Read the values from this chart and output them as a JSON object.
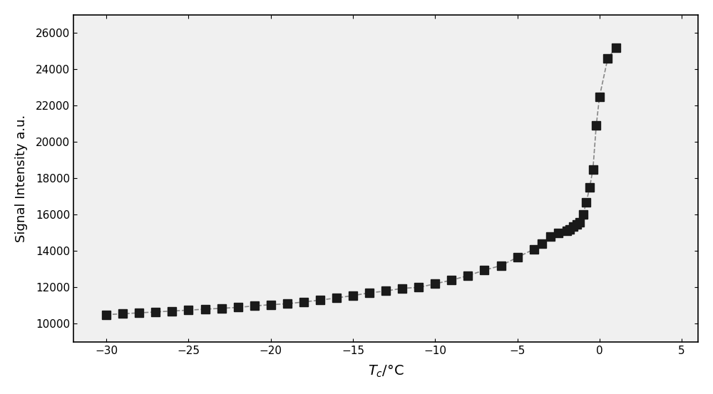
{
  "x": [
    -30,
    -29,
    -28,
    -27,
    -26,
    -25,
    -24,
    -23,
    -22,
    -21,
    -20,
    -19,
    -18,
    -17,
    -16,
    -15,
    -14,
    -13,
    -12,
    -11,
    -10,
    -9,
    -8,
    -7,
    -6,
    -5,
    -4,
    -3.5,
    -3,
    -2.5,
    -2,
    -1.8,
    -1.6,
    -1.4,
    -1.2,
    -1.0,
    -0.8,
    -0.6,
    -0.4,
    -0.2,
    0.0,
    0.5,
    1.0
  ],
  "y": [
    10500,
    10550,
    10600,
    10650,
    10700,
    10750,
    10800,
    10850,
    10900,
    10980,
    11050,
    11100,
    11200,
    11300,
    11420,
    11550,
    11700,
    11800,
    11950,
    12000,
    12200,
    12400,
    12650,
    12950,
    13200,
    13650,
    14100,
    14400,
    14800,
    15000,
    15100,
    15200,
    15350,
    15450,
    15600,
    16000,
    16700,
    17500,
    18500,
    20900,
    22500,
    24600,
    25200
  ],
  "xlabel": "$T_c$/°C",
  "ylabel": "Signal Intensity a.u.",
  "xlim": [
    -32,
    6
  ],
  "ylim": [
    9000,
    27000
  ],
  "xticks": [
    -30,
    -25,
    -20,
    -15,
    -10,
    -5,
    0,
    5
  ],
  "yticks": [
    10000,
    12000,
    14000,
    16000,
    18000,
    20000,
    22000,
    24000,
    26000
  ],
  "marker": "s",
  "marker_color": "#1a1a1a",
  "marker_size": 8,
  "line_color": "#888888",
  "line_style": "--",
  "line_width": 1.2,
  "background_color": "#f0f0f0",
  "figure_bg": "#ffffff"
}
